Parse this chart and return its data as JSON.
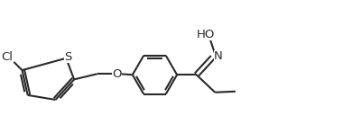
{
  "bg_color": "#ffffff",
  "line_color": "#2a2a2a",
  "line_width": 1.5,
  "font_size": 9.5,
  "xlim": [
    -0.3,
    7.2
  ],
  "ylim": [
    -1.1,
    1.5
  ],
  "figsize": [
    3.9,
    1.48
  ],
  "dpi": 100
}
